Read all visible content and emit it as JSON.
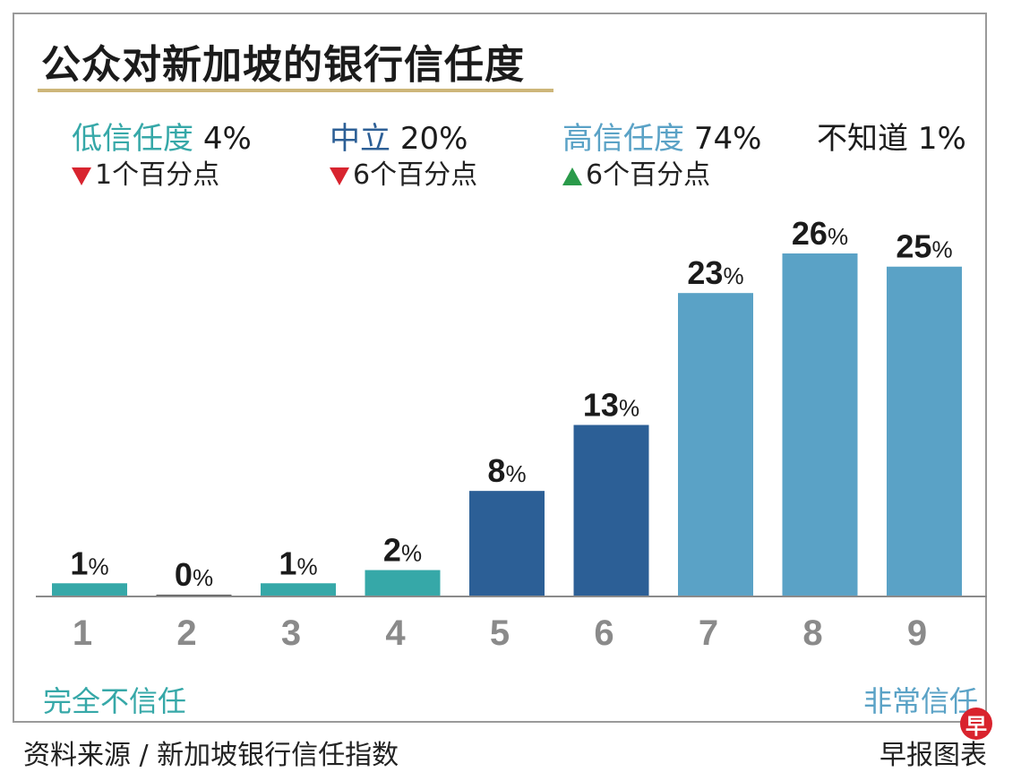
{
  "title": "公众对新加坡的银行信任度",
  "colors": {
    "low": "#36a8a8",
    "neutral": "#2c5f96",
    "high": "#5aa2c6",
    "title_rule": "#cdb67a",
    "down_arrow": "#d8242f",
    "up_arrow": "#2a9a4a"
  },
  "summary": [
    {
      "label": "低信任度",
      "value": "4%",
      "change": "1个百分点",
      "direction": "down",
      "color": "#36a8a8"
    },
    {
      "label": "中立",
      "value": "20%",
      "change": "6个百分点",
      "direction": "down",
      "color": "#2c5f96"
    },
    {
      "label": "高信任度",
      "value": "74%",
      "change": "6个百分点",
      "direction": "up",
      "color": "#5aa2c6"
    },
    {
      "label": "不知道",
      "value": "1%",
      "color": "#1b1b1b"
    }
  ],
  "scale_labels": {
    "left": "完全不信任",
    "right": "非常信任"
  },
  "footer": {
    "source": "资料来源 / 新加坡银行信任指数",
    "credit": "早报图表"
  },
  "logo_char": "早",
  "chart_data": {
    "type": "bar",
    "categories": [
      "1",
      "2",
      "3",
      "4",
      "5",
      "6",
      "7",
      "8",
      "9"
    ],
    "values": [
      1,
      0,
      1,
      2,
      8,
      13,
      23,
      26,
      25
    ],
    "value_suffix": "%",
    "groups": [
      "low",
      "low",
      "low",
      "low",
      "neutral",
      "neutral",
      "high",
      "high",
      "high"
    ],
    "title": "公众对新加坡的银行信任度",
    "xlabel": "",
    "ylabel": "",
    "ylim": [
      0,
      27
    ],
    "grid": false,
    "legend": "top"
  }
}
